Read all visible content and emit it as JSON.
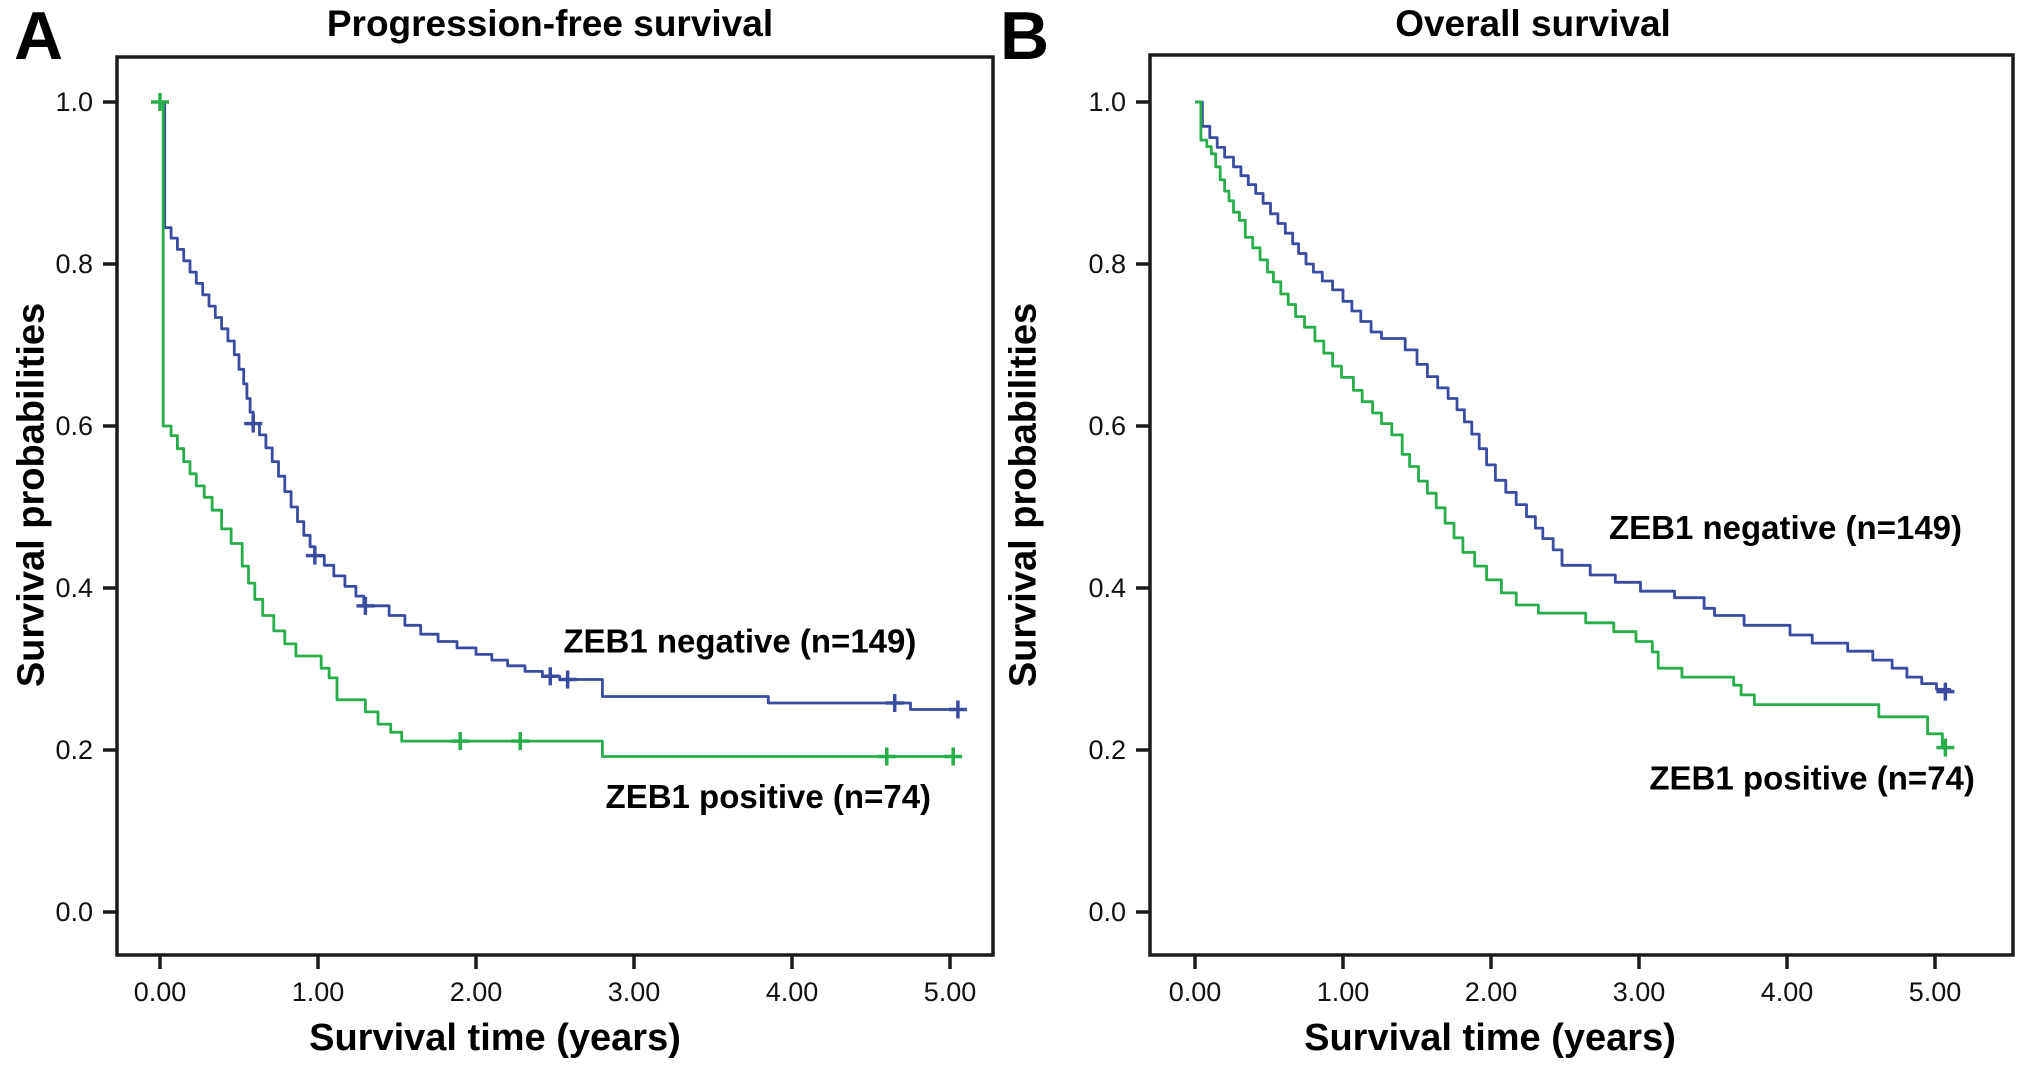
{
  "figure": {
    "background": "#ffffff",
    "border_color": "#1b1b1b",
    "panel_a_letter": "A",
    "panel_b_letter": "B"
  },
  "chart_data": [
    {
      "type": "line",
      "subtype": "kaplan_meier_step",
      "panel_label": "A",
      "title": "Progression-free survival",
      "xlabel": "Survival time (years)",
      "ylabel": "Survival probabilities",
      "xlim": [
        0,
        5.2
      ],
      "ylim": [
        0,
        1.05
      ],
      "grid": false,
      "legend_position": "labels-inside-plot",
      "xticks": [
        "0.00",
        "1.00",
        "2.00",
        "3.00",
        "4.00",
        "5.00"
      ],
      "xtick_values": [
        0,
        1,
        2,
        3,
        4,
        5
      ],
      "yticks": [
        "0.0",
        "0.2",
        "0.4",
        "0.6",
        "0.8",
        "1.0"
      ],
      "ytick_values": [
        0,
        0.2,
        0.4,
        0.6,
        0.8,
        1.0
      ],
      "series": [
        {
          "name": "ZEB1 negative (n=149)",
          "color": "#3a4ba0",
          "label_anchor": [
            3.67,
            0.334
          ],
          "steps": [
            [
              0,
              1.0
            ],
            [
              0.03,
              0.845
            ],
            [
              0.07,
              0.832
            ],
            [
              0.11,
              0.818
            ],
            [
              0.15,
              0.804
            ],
            [
              0.19,
              0.79
            ],
            [
              0.23,
              0.776
            ],
            [
              0.27,
              0.762
            ],
            [
              0.31,
              0.748
            ],
            [
              0.35,
              0.734
            ],
            [
              0.39,
              0.72
            ],
            [
              0.43,
              0.705
            ],
            [
              0.47,
              0.688
            ],
            [
              0.5,
              0.67
            ],
            [
              0.53,
              0.652
            ],
            [
              0.55,
              0.634
            ],
            [
              0.57,
              0.617
            ],
            [
              0.59,
              0.603
            ],
            [
              0.63,
              0.589
            ],
            [
              0.67,
              0.573
            ],
            [
              0.71,
              0.556
            ],
            [
              0.75,
              0.538
            ],
            [
              0.79,
              0.519
            ],
            [
              0.83,
              0.5
            ],
            [
              0.87,
              0.482
            ],
            [
              0.91,
              0.465
            ],
            [
              0.95,
              0.451
            ],
            [
              0.98,
              0.44
            ],
            [
              1.04,
              0.428
            ],
            [
              1.1,
              0.415
            ],
            [
              1.17,
              0.402
            ],
            [
              1.24,
              0.39
            ],
            [
              1.29,
              0.378
            ],
            [
              1.45,
              0.366
            ],
            [
              1.55,
              0.354
            ],
            [
              1.65,
              0.343
            ],
            [
              1.76,
              0.334
            ],
            [
              1.88,
              0.326
            ],
            [
              2.0,
              0.318
            ],
            [
              2.1,
              0.311
            ],
            [
              2.2,
              0.304
            ],
            [
              2.31,
              0.297
            ],
            [
              2.42,
              0.291
            ],
            [
              2.53,
              0.287
            ],
            [
              2.8,
              0.266
            ],
            [
              3.85,
              0.258
            ],
            [
              4.75,
              0.25
            ],
            [
              5.08,
              0.25
            ]
          ],
          "censors": [
            [
              0.59,
              0.603
            ],
            [
              0.98,
              0.44
            ],
            [
              1.3,
              0.378
            ],
            [
              2.47,
              0.291
            ],
            [
              2.58,
              0.287
            ],
            [
              4.65,
              0.258
            ],
            [
              5.05,
              0.25
            ]
          ]
        },
        {
          "name": "ZEB1 positive (n=74)",
          "color": "#27ae4b",
          "label_anchor": [
            3.85,
            0.142
          ],
          "steps": [
            [
              0,
              1.0
            ],
            [
              0.02,
              0.6
            ],
            [
              0.07,
              0.588
            ],
            [
              0.11,
              0.572
            ],
            [
              0.15,
              0.556
            ],
            [
              0.19,
              0.541
            ],
            [
              0.23,
              0.526
            ],
            [
              0.28,
              0.512
            ],
            [
              0.33,
              0.496
            ],
            [
              0.39,
              0.473
            ],
            [
              0.45,
              0.455
            ],
            [
              0.52,
              0.427
            ],
            [
              0.56,
              0.406
            ],
            [
              0.6,
              0.386
            ],
            [
              0.65,
              0.366
            ],
            [
              0.72,
              0.347
            ],
            [
              0.79,
              0.331
            ],
            [
              0.86,
              0.316
            ],
            [
              1.02,
              0.301
            ],
            [
              1.07,
              0.289
            ],
            [
              1.12,
              0.262
            ],
            [
              1.3,
              0.247
            ],
            [
              1.38,
              0.232
            ],
            [
              1.46,
              0.222
            ],
            [
              1.53,
              0.211
            ],
            [
              2.8,
              0.192
            ],
            [
              5.05,
              0.192
            ]
          ],
          "censors": [
            [
              0,
              1.0
            ],
            [
              1.9,
              0.211
            ],
            [
              2.28,
              0.211
            ],
            [
              4.6,
              0.192
            ],
            [
              5.02,
              0.192
            ]
          ]
        }
      ]
    },
    {
      "type": "line",
      "subtype": "kaplan_meier_step",
      "panel_label": "B",
      "title": "Overall survival",
      "xlabel": "Survival time (years)",
      "ylabel": "Survival probabilities",
      "xlim": [
        0,
        5.2
      ],
      "ylim": [
        0,
        1.05
      ],
      "grid": false,
      "legend_position": "labels-inside-plot",
      "xticks": [
        "0.00",
        "1.00",
        "2.00",
        "3.00",
        "4.00",
        "5.00"
      ],
      "xtick_values": [
        0,
        1,
        2,
        3,
        4,
        5
      ],
      "yticks": [
        "0.0",
        "0.2",
        "0.4",
        "0.6",
        "0.8",
        "1.0"
      ],
      "ytick_values": [
        0,
        0.2,
        0.4,
        0.6,
        0.8,
        1.0
      ],
      "series": [
        {
          "name": "ZEB1 negative (n=149)",
          "color": "#3a4ba0",
          "label_anchor": [
            3.99,
            0.474
          ],
          "steps": [
            [
              0,
              1.0
            ],
            [
              0.05,
              0.97
            ],
            [
              0.1,
              0.956
            ],
            [
              0.15,
              0.944
            ],
            [
              0.2,
              0.932
            ],
            [
              0.26,
              0.92
            ],
            [
              0.31,
              0.909
            ],
            [
              0.36,
              0.898
            ],
            [
              0.41,
              0.887
            ],
            [
              0.46,
              0.875
            ],
            [
              0.51,
              0.862
            ],
            [
              0.56,
              0.85
            ],
            [
              0.61,
              0.838
            ],
            [
              0.66,
              0.825
            ],
            [
              0.7,
              0.813
            ],
            [
              0.75,
              0.8
            ],
            [
              0.8,
              0.79
            ],
            [
              0.86,
              0.779
            ],
            [
              0.93,
              0.768
            ],
            [
              1.0,
              0.754
            ],
            [
              1.06,
              0.742
            ],
            [
              1.12,
              0.729
            ],
            [
              1.19,
              0.716
            ],
            [
              1.26,
              0.708
            ],
            [
              1.42,
              0.694
            ],
            [
              1.5,
              0.676
            ],
            [
              1.57,
              0.661
            ],
            [
              1.64,
              0.647
            ],
            [
              1.71,
              0.634
            ],
            [
              1.77,
              0.62
            ],
            [
              1.82,
              0.605
            ],
            [
              1.87,
              0.59
            ],
            [
              1.92,
              0.572
            ],
            [
              1.97,
              0.552
            ],
            [
              2.03,
              0.533
            ],
            [
              2.1,
              0.518
            ],
            [
              2.17,
              0.503
            ],
            [
              2.24,
              0.488
            ],
            [
              2.3,
              0.474
            ],
            [
              2.35,
              0.461
            ],
            [
              2.42,
              0.447
            ],
            [
              2.48,
              0.428
            ],
            [
              2.67,
              0.416
            ],
            [
              2.84,
              0.407
            ],
            [
              3.01,
              0.396
            ],
            [
              3.24,
              0.388
            ],
            [
              3.44,
              0.375
            ],
            [
              3.51,
              0.366
            ],
            [
              3.71,
              0.354
            ],
            [
              4.02,
              0.342
            ],
            [
              4.17,
              0.332
            ],
            [
              4.41,
              0.322
            ],
            [
              4.58,
              0.311
            ],
            [
              4.71,
              0.301
            ],
            [
              4.81,
              0.29
            ],
            [
              4.91,
              0.282
            ],
            [
              5.01,
              0.275
            ],
            [
              5.1,
              0.272
            ]
          ],
          "censors": [
            [
              5.07,
              0.272
            ]
          ]
        },
        {
          "name": "ZEB1 positive (n=74)",
          "color": "#27ae4b",
          "label_anchor": [
            4.17,
            0.165
          ],
          "steps": [
            [
              0,
              1.0
            ],
            [
              0.04,
              0.953
            ],
            [
              0.08,
              0.945
            ],
            [
              0.11,
              0.936
            ],
            [
              0.14,
              0.92
            ],
            [
              0.17,
              0.904
            ],
            [
              0.2,
              0.89
            ],
            [
              0.23,
              0.878
            ],
            [
              0.26,
              0.864
            ],
            [
              0.3,
              0.854
            ],
            [
              0.34,
              0.833
            ],
            [
              0.39,
              0.82
            ],
            [
              0.44,
              0.805
            ],
            [
              0.49,
              0.79
            ],
            [
              0.53,
              0.778
            ],
            [
              0.58,
              0.763
            ],
            [
              0.63,
              0.75
            ],
            [
              0.68,
              0.735
            ],
            [
              0.74,
              0.722
            ],
            [
              0.81,
              0.705
            ],
            [
              0.87,
              0.69
            ],
            [
              0.93,
              0.674
            ],
            [
              0.99,
              0.66
            ],
            [
              1.07,
              0.644
            ],
            [
              1.13,
              0.63
            ],
            [
              1.2,
              0.616
            ],
            [
              1.26,
              0.603
            ],
            [
              1.33,
              0.589
            ],
            [
              1.4,
              0.565
            ],
            [
              1.45,
              0.55
            ],
            [
              1.51,
              0.532
            ],
            [
              1.57,
              0.517
            ],
            [
              1.63,
              0.499
            ],
            [
              1.69,
              0.48
            ],
            [
              1.75,
              0.462
            ],
            [
              1.81,
              0.444
            ],
            [
              1.89,
              0.427
            ],
            [
              1.97,
              0.41
            ],
            [
              2.07,
              0.394
            ],
            [
              2.17,
              0.379
            ],
            [
              2.32,
              0.369
            ],
            [
              2.64,
              0.357
            ],
            [
              2.83,
              0.346
            ],
            [
              2.98,
              0.334
            ],
            [
              3.09,
              0.321
            ],
            [
              3.13,
              0.301
            ],
            [
              3.29,
              0.29
            ],
            [
              3.64,
              0.28
            ],
            [
              3.69,
              0.268
            ],
            [
              3.78,
              0.256
            ],
            [
              4.62,
              0.241
            ],
            [
              4.95,
              0.22
            ],
            [
              5.05,
              0.203
            ],
            [
              5.1,
              0.203
            ]
          ],
          "censors": [
            [
              5.07,
              0.203
            ]
          ]
        }
      ]
    }
  ]
}
